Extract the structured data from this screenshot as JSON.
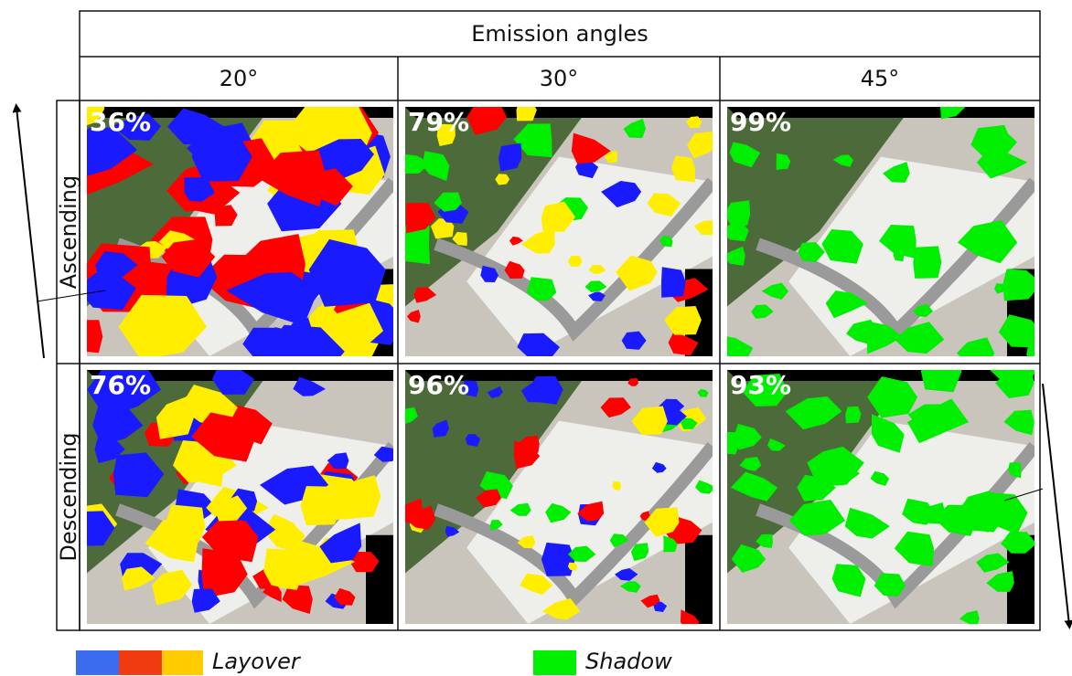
{
  "header": {
    "title": "Emission angles",
    "columns": [
      "20°",
      "30°",
      "45°"
    ]
  },
  "rows": [
    {
      "label": "Ascending",
      "cells": [
        "36%",
        "79%",
        "99%"
      ]
    },
    {
      "label": "Descending",
      "cells": [
        "76%",
        "96%",
        "93%"
      ]
    }
  ],
  "legend": [
    {
      "label": "Layover"
    },
    {
      "label": "Shadow"
    }
  ]
}
